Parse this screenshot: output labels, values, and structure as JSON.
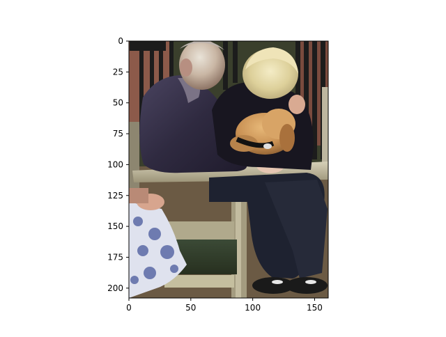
{
  "figure": {
    "x_axis": {
      "ticks": [
        "0",
        "50",
        "100",
        "150"
      ],
      "tick_values": [
        0,
        50,
        100,
        150
      ],
      "limits": [
        0,
        161
      ]
    },
    "y_axis": {
      "ticks": [
        "0",
        "25",
        "50",
        "75",
        "100",
        "125",
        "150",
        "175",
        "200"
      ],
      "tick_values": [
        0,
        25,
        50,
        75,
        100,
        125,
        150,
        175,
        200
      ],
      "limits": [
        208,
        0
      ]
    },
    "colors": {
      "axes": "#000000",
      "background": "#ffffff"
    }
  },
  "photo": {
    "subject_icon": "photo-of-people-on-park-bench-with-dog"
  }
}
